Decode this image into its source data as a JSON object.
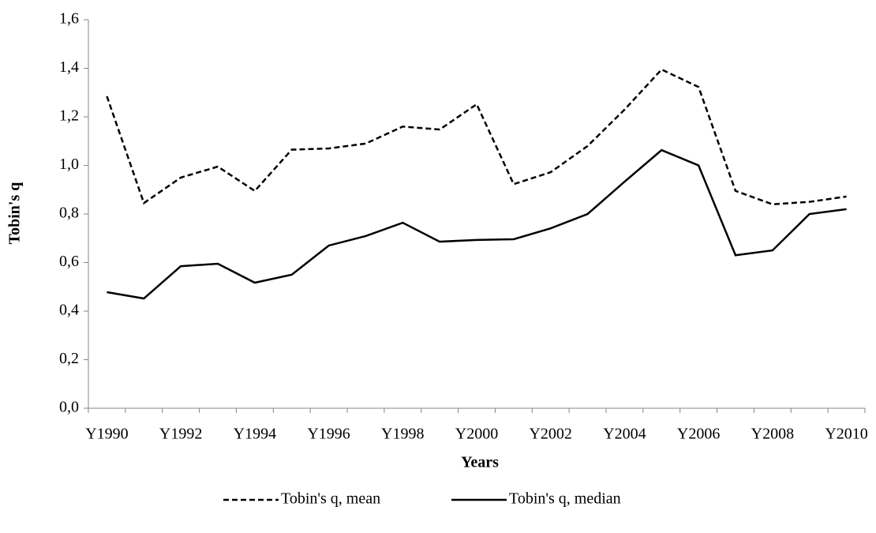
{
  "chart_data": {
    "type": "line",
    "x_label": "Years",
    "y_label": "Tobin's q",
    "categories": [
      "Y1990",
      null,
      "Y1992",
      null,
      "Y1994",
      null,
      "Y1996",
      null,
      "Y1998",
      null,
      "Y2000",
      null,
      "Y2002",
      null,
      "Y2004",
      null,
      "Y2006",
      null,
      "Y2008",
      null,
      "Y2010"
    ],
    "series": [
      {
        "name": "Tobin's q, mean",
        "color": "#000000",
        "dash": "dashed",
        "values": [
          1.285,
          0.845,
          0.95,
          0.995,
          0.895,
          1.065,
          1.07,
          1.09,
          1.16,
          1.148,
          1.252,
          0.923,
          0.972,
          1.08,
          1.23,
          1.395,
          1.323,
          0.895,
          0.84,
          0.85,
          0.872
        ]
      },
      {
        "name": "Tobin's q, median",
        "color": "#000000",
        "dash": "solid",
        "values": [
          0.478,
          0.452,
          0.585,
          0.595,
          0.517,
          0.55,
          0.67,
          0.709,
          0.764,
          0.686,
          0.693,
          0.696,
          0.741,
          0.8,
          0.933,
          1.063,
          1.0,
          0.63,
          0.65,
          0.8,
          0.82
        ]
      }
    ],
    "ylim": [
      0,
      1.6
    ],
    "yticks": [
      {
        "value": 0,
        "label": "0,0"
      },
      {
        "value": 0.2,
        "label": "0,2"
      },
      {
        "value": 0.4,
        "label": "0,4"
      },
      {
        "value": 0.6,
        "label": "0,6"
      },
      {
        "value": 0.8,
        "label": "0,8"
      },
      {
        "value": 1.0,
        "label": "1,0"
      },
      {
        "value": 1.2,
        "label": "1,2"
      },
      {
        "value": 1.4,
        "label": "1,4"
      },
      {
        "value": 1.6,
        "label": "1,6"
      }
    ],
    "grid": false,
    "legend": "bottom"
  }
}
